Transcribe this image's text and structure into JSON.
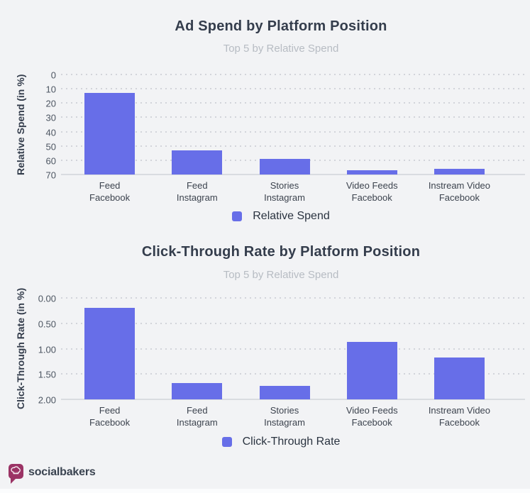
{
  "page": {
    "background": "#f2f3f5",
    "accent_color": "#676ee8"
  },
  "chart_data": [
    {
      "type": "bar",
      "title": "Ad Spend by Platform Position",
      "subtitle": "Top 5 by Relative Spend",
      "ylabel": "Relative Spend (in %)",
      "legend": "Relative Spend",
      "color": "#676ee8",
      "categories": [
        "Feed\nFacebook",
        "Feed\nInstagram",
        "Stories\nInstagram",
        "Video Feeds\nFacebook",
        "Instream Video\nFacebook"
      ],
      "values": [
        57,
        17,
        11,
        3,
        4
      ],
      "ylim": [
        0,
        70
      ],
      "yticks": [
        {
          "v": 0,
          "label": "0"
        },
        {
          "v": 10,
          "label": "10"
        },
        {
          "v": 20,
          "label": "20"
        },
        {
          "v": 30,
          "label": "30"
        },
        {
          "v": 40,
          "label": "40"
        },
        {
          "v": 50,
          "label": "50"
        },
        {
          "v": 60,
          "label": "60"
        },
        {
          "v": 70,
          "label": "70"
        }
      ],
      "grid": "dotted horizontal",
      "legend_position": "bottom"
    },
    {
      "type": "bar",
      "title": "Click-Through Rate by Platform Position",
      "subtitle": "Top 5 by Relative Spend",
      "ylabel": "Click-Through Rate (in %)",
      "legend": "Click-Through Rate",
      "color": "#676ee8",
      "categories": [
        "Feed\nFacebook",
        "Feed\nInstagram",
        "Stories\nInstagram",
        "Video Feeds\nFacebook",
        "Instream Video\nFacebook"
      ],
      "values": [
        1.8,
        0.32,
        0.26,
        1.14,
        0.82
      ],
      "ylim": [
        0,
        2
      ],
      "yticks": [
        {
          "v": 0,
          "label": "0.00"
        },
        {
          "v": 0.5,
          "label": "0.50"
        },
        {
          "v": 1,
          "label": "1.00"
        },
        {
          "v": 1.5,
          "label": "1.50"
        },
        {
          "v": 2,
          "label": "2.00"
        }
      ],
      "grid": "dotted horizontal",
      "legend_position": "bottom"
    }
  ],
  "footer": {
    "brand": "socialbakers",
    "logo_icon": "chef-hat-speech-bubble",
    "logo_color": "#9b3365"
  }
}
